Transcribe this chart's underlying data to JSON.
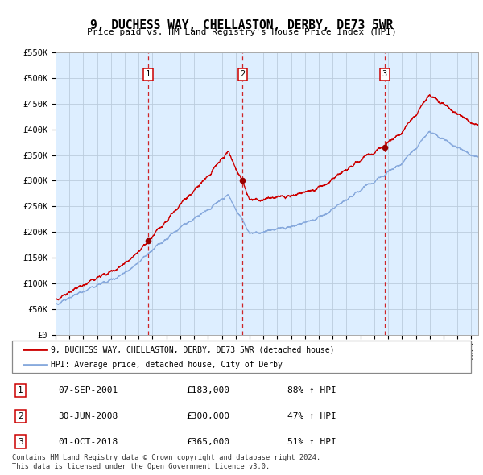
{
  "title": "9, DUCHESS WAY, CHELLASTON, DERBY, DE73 5WR",
  "subtitle": "Price paid vs. HM Land Registry's House Price Index (HPI)",
  "ylim": [
    0,
    550000
  ],
  "xlim_start": 1995.0,
  "xlim_end": 2025.5,
  "sales": [
    {
      "label": "1",
      "year": 2001.69,
      "price": 183000,
      "date": "07-SEP-2001",
      "hpi_pct": "88% ↑ HPI"
    },
    {
      "label": "2",
      "year": 2008.5,
      "price": 300000,
      "date": "30-JUN-2008",
      "hpi_pct": "47% ↑ HPI"
    },
    {
      "label": "3",
      "year": 2018.75,
      "price": 365000,
      "date": "01-OCT-2018",
      "hpi_pct": "51% ↑ HPI"
    }
  ],
  "red_line_color": "#cc0000",
  "blue_line_color": "#88aadd",
  "grid_color": "#bbccdd",
  "bg_color": "#ddeeff",
  "footnote1": "Contains HM Land Registry data © Crown copyright and database right 2024.",
  "footnote2": "This data is licensed under the Open Government Licence v3.0.",
  "legend_line1": "9, DUCHESS WAY, CHELLASTON, DERBY, DE73 5WR (detached house)",
  "legend_line2": "HPI: Average price, detached house, City of Derby"
}
